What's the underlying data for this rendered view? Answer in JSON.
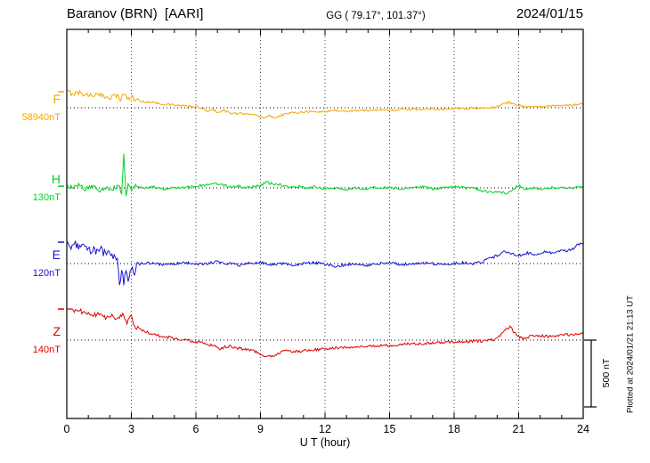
{
  "header": {
    "title": "Baranov (BRN)  [AARI]",
    "gg": "GG ( 79.17°, 101.37°)",
    "date": "2024/01/15"
  },
  "plotted_at": "Plotted at 2024/01/21 21:13 UT",
  "chart_data": {
    "type": "line",
    "title": "Baranov (BRN) [AARI] magnetogram 2024/01/15",
    "xlabel": "U T (hour)",
    "xlim": [
      0,
      24
    ],
    "x_ticks": [
      0,
      3,
      6,
      9,
      12,
      15,
      18,
      21,
      24
    ],
    "grid": "dotted vertical gridlines every 3 h; dotted horizontal baseline per component",
    "legend_position": "left margin component labels",
    "scale_bar": {
      "label": "500 nT",
      "nT": 500
    },
    "series": [
      {
        "name": "F",
        "baseline_label": "58940nT",
        "baseline_nT": 58940,
        "color": "#f5a800",
        "unit": "nT offset from baseline",
        "noise_base": 8,
        "noise_segments": [
          {
            "from": 0,
            "to": 3.5,
            "amp": 20
          }
        ],
        "points": [
          [
            0,
            120
          ],
          [
            0.3,
            107
          ],
          [
            0.6,
            113
          ],
          [
            1,
            93
          ],
          [
            1.3,
            100
          ],
          [
            1.6,
            87
          ],
          [
            2,
            80
          ],
          [
            2.3,
            93
          ],
          [
            2.5,
            67
          ],
          [
            2.7,
            107
          ],
          [
            2.9,
            53
          ],
          [
            3,
            87
          ],
          [
            3.2,
            60
          ],
          [
            3.5,
            47
          ],
          [
            4,
            40
          ],
          [
            4.5,
            27
          ],
          [
            5,
            20
          ],
          [
            5.5,
            13
          ],
          [
            6,
            7
          ],
          [
            6.3,
            -7
          ],
          [
            6.6,
            -27
          ],
          [
            6.8,
            -13
          ],
          [
            7,
            -33
          ],
          [
            7.3,
            -20
          ],
          [
            7.6,
            -40
          ],
          [
            8,
            -47
          ],
          [
            8.4,
            -40
          ],
          [
            8.8,
            -60
          ],
          [
            9.1,
            -73
          ],
          [
            9.4,
            -60
          ],
          [
            9.7,
            -73
          ],
          [
            10,
            -53
          ],
          [
            10.4,
            -40
          ],
          [
            10.8,
            -33
          ],
          [
            11.2,
            -27
          ],
          [
            11.6,
            -33
          ],
          [
            12,
            -27
          ],
          [
            12.5,
            -20
          ],
          [
            13,
            -27
          ],
          [
            13.5,
            -20
          ],
          [
            14,
            -20
          ],
          [
            14.5,
            -13
          ],
          [
            15,
            -20
          ],
          [
            15.5,
            -13
          ],
          [
            16,
            -13
          ],
          [
            16.5,
            -13
          ],
          [
            17,
            -7
          ],
          [
            17.5,
            -13
          ],
          [
            18,
            -7
          ],
          [
            18.5,
            -7
          ],
          [
            19,
            0
          ],
          [
            19.3,
            -7
          ],
          [
            19.6,
            0
          ],
          [
            20,
            7
          ],
          [
            20.3,
            33
          ],
          [
            20.6,
            40
          ],
          [
            20.9,
            20
          ],
          [
            21.2,
            13
          ],
          [
            21.5,
            7
          ],
          [
            22,
            7
          ],
          [
            22.5,
            13
          ],
          [
            23,
            13
          ],
          [
            23.5,
            20
          ],
          [
            24,
            33
          ]
        ]
      },
      {
        "name": "H",
        "baseline_label": "130nT",
        "baseline_nT": 130,
        "color": "#00d02a",
        "unit": "nT offset from baseline",
        "noise_base": 10,
        "noise_segments": [
          {
            "from": 0,
            "to": 3.2,
            "amp": 18
          }
        ],
        "points": [
          [
            0,
            13
          ],
          [
            0.3,
            0
          ],
          [
            0.6,
            20
          ],
          [
            0.9,
            -13
          ],
          [
            1.2,
            13
          ],
          [
            1.5,
            -20
          ],
          [
            1.8,
            7
          ],
          [
            2.1,
            -13
          ],
          [
            2.4,
            20
          ],
          [
            2.55,
            -33
          ],
          [
            2.65,
            253
          ],
          [
            2.75,
            -67
          ],
          [
            2.85,
            33
          ],
          [
            3,
            -20
          ],
          [
            3.2,
            13
          ],
          [
            3.5,
            0
          ],
          [
            4,
            7
          ],
          [
            4.5,
            -7
          ],
          [
            5,
            7
          ],
          [
            5.5,
            0
          ],
          [
            6,
            13
          ],
          [
            6.5,
            20
          ],
          [
            7,
            33
          ],
          [
            7.3,
            20
          ],
          [
            7.6,
            7
          ],
          [
            8,
            13
          ],
          [
            8.5,
            0
          ],
          [
            9,
            20
          ],
          [
            9.3,
            40
          ],
          [
            9.6,
            27
          ],
          [
            10,
            20
          ],
          [
            10.3,
            7
          ],
          [
            10.7,
            13
          ],
          [
            11,
            0
          ],
          [
            11.5,
            7
          ],
          [
            12,
            -7
          ],
          [
            12.5,
            0
          ],
          [
            13,
            -13
          ],
          [
            13.5,
            0
          ],
          [
            14,
            -7
          ],
          [
            14.5,
            7
          ],
          [
            15,
            0
          ],
          [
            15.5,
            -7
          ],
          [
            16,
            0
          ],
          [
            16.5,
            7
          ],
          [
            17,
            -7
          ],
          [
            17.5,
            0
          ],
          [
            18,
            7
          ],
          [
            18.5,
            0
          ],
          [
            19,
            -7
          ],
          [
            19.3,
            -20
          ],
          [
            19.6,
            -33
          ],
          [
            20,
            -27
          ],
          [
            20.4,
            -40
          ],
          [
            20.7,
            -20
          ],
          [
            21,
            20
          ],
          [
            21.3,
            -13
          ],
          [
            21.6,
            0
          ],
          [
            22,
            -7
          ],
          [
            22.5,
            0
          ],
          [
            23,
            7
          ],
          [
            23.5,
            0
          ],
          [
            24,
            7
          ]
        ]
      },
      {
        "name": "E",
        "baseline_label": "120nT",
        "baseline_nT": 120,
        "color": "#1515cf",
        "unit": "nT offset from baseline",
        "noise_base": 10,
        "noise_segments": [
          {
            "from": 0,
            "to": 3.3,
            "amp": 30
          }
        ],
        "points": [
          [
            0,
            160
          ],
          [
            0.2,
            120
          ],
          [
            0.4,
            147
          ],
          [
            0.6,
            107
          ],
          [
            0.8,
            133
          ],
          [
            1,
            93
          ],
          [
            1.2,
            113
          ],
          [
            1.4,
            80
          ],
          [
            1.6,
            100
          ],
          [
            1.8,
            67
          ],
          [
            2,
            87
          ],
          [
            2.2,
            53
          ],
          [
            2.35,
            33
          ],
          [
            2.45,
            -180
          ],
          [
            2.55,
            -40
          ],
          [
            2.65,
            -160
          ],
          [
            2.75,
            -30
          ],
          [
            2.85,
            -120
          ],
          [
            3,
            -25
          ],
          [
            3.15,
            -60
          ],
          [
            3.3,
            -10
          ],
          [
            3.5,
            0
          ],
          [
            4,
            7
          ],
          [
            4.5,
            -13
          ],
          [
            5,
            0
          ],
          [
            5.5,
            7
          ],
          [
            6,
            -7
          ],
          [
            6.5,
            0
          ],
          [
            7,
            13
          ],
          [
            7.5,
            0
          ],
          [
            8,
            -13
          ],
          [
            8.5,
            0
          ],
          [
            9,
            7
          ],
          [
            9.5,
            -7
          ],
          [
            10,
            0
          ],
          [
            10.5,
            -13
          ],
          [
            11,
            0
          ],
          [
            11.5,
            7
          ],
          [
            12,
            -7
          ],
          [
            12.5,
            -20
          ],
          [
            13,
            -7
          ],
          [
            13.5,
            0
          ],
          [
            14,
            -13
          ],
          [
            14.5,
            0
          ],
          [
            15,
            7
          ],
          [
            15.5,
            -7
          ],
          [
            16,
            0
          ],
          [
            16.5,
            7
          ],
          [
            17,
            0
          ],
          [
            17.5,
            -7
          ],
          [
            18,
            0
          ],
          [
            18.5,
            7
          ],
          [
            19,
            0
          ],
          [
            19.3,
            13
          ],
          [
            19.6,
            33
          ],
          [
            20,
            60
          ],
          [
            20.3,
            87
          ],
          [
            20.6,
            73
          ],
          [
            21,
            60
          ],
          [
            21.4,
            80
          ],
          [
            21.8,
            67
          ],
          [
            22.2,
            87
          ],
          [
            22.6,
            80
          ],
          [
            23,
            93
          ],
          [
            23.4,
            100
          ],
          [
            23.7,
            133
          ],
          [
            24,
            160
          ]
        ]
      },
      {
        "name": "Z",
        "baseline_label": "140nT",
        "baseline_nT": 140,
        "color": "#e00000",
        "unit": "nT offset from baseline",
        "noise_base": 10,
        "noise_segments": [
          {
            "from": 0,
            "to": 3.3,
            "amp": 18
          }
        ],
        "points": [
          [
            0,
            233
          ],
          [
            0.3,
            213
          ],
          [
            0.6,
            220
          ],
          [
            0.9,
            200
          ],
          [
            1.2,
            187
          ],
          [
            1.5,
            193
          ],
          [
            1.8,
            173
          ],
          [
            2.1,
            180
          ],
          [
            2.4,
            160
          ],
          [
            2.6,
            187
          ],
          [
            2.8,
            133
          ],
          [
            3,
            200
          ],
          [
            3.15,
            100
          ],
          [
            3.3,
            90
          ],
          [
            3.5,
            70
          ],
          [
            3.8,
            55
          ],
          [
            4,
            45
          ],
          [
            4.3,
            33
          ],
          [
            4.6,
            25
          ],
          [
            5,
            13
          ],
          [
            5.3,
            7
          ],
          [
            5.6,
            0
          ],
          [
            6,
            -13
          ],
          [
            6.3,
            -20
          ],
          [
            6.6,
            -33
          ],
          [
            6.9,
            -47
          ],
          [
            7.1,
            -73
          ],
          [
            7.3,
            -53
          ],
          [
            7.6,
            -47
          ],
          [
            7.9,
            -60
          ],
          [
            8.2,
            -67
          ],
          [
            8.5,
            -73
          ],
          [
            8.8,
            -87
          ],
          [
            9,
            -107
          ],
          [
            9.2,
            -127
          ],
          [
            9.4,
            -113
          ],
          [
            9.6,
            -120
          ],
          [
            9.8,
            -100
          ],
          [
            10,
            -87
          ],
          [
            10.3,
            -80
          ],
          [
            10.6,
            -87
          ],
          [
            11,
            -80
          ],
          [
            11.4,
            -73
          ],
          [
            11.8,
            -67
          ],
          [
            12.2,
            -60
          ],
          [
            12.6,
            -60
          ],
          [
            13,
            -53
          ],
          [
            13.5,
            -53
          ],
          [
            14,
            -47
          ],
          [
            14.5,
            -40
          ],
          [
            15,
            -40
          ],
          [
            15.5,
            -33
          ],
          [
            16,
            -27
          ],
          [
            16.5,
            -27
          ],
          [
            17,
            -20
          ],
          [
            17.5,
            -20
          ],
          [
            18,
            -13
          ],
          [
            18.5,
            -13
          ],
          [
            19,
            -7
          ],
          [
            19.4,
            -7
          ],
          [
            19.7,
            0
          ],
          [
            20,
            13
          ],
          [
            20.3,
            60
          ],
          [
            20.6,
            100
          ],
          [
            20.8,
            53
          ],
          [
            21,
            27
          ],
          [
            21.2,
            7
          ],
          [
            21.4,
            20
          ],
          [
            21.7,
            33
          ],
          [
            22,
            33
          ],
          [
            22.4,
            27
          ],
          [
            22.8,
            33
          ],
          [
            23.2,
            40
          ],
          [
            23.6,
            40
          ],
          [
            24,
            47
          ]
        ]
      }
    ]
  }
}
